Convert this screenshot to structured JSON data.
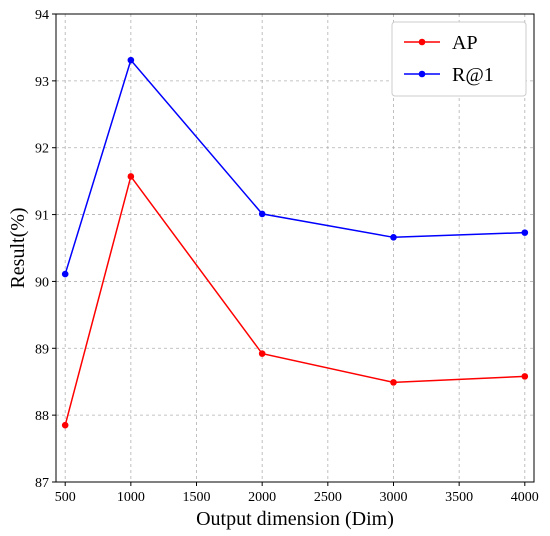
{
  "chart_data": {
    "type": "line",
    "xlabel": "Output dimension (Dim)",
    "ylabel": "Result(%)",
    "xlim": [
      430,
      4070
    ],
    "ylim": [
      87,
      94
    ],
    "xticks": [
      500,
      1000,
      1500,
      2000,
      2500,
      3000,
      3500,
      4000
    ],
    "yticks": [
      87,
      88,
      89,
      90,
      91,
      92,
      93,
      94
    ],
    "grid": true,
    "legend_position": "top-right",
    "x": [
      500,
      1000,
      2000,
      3000,
      4000
    ],
    "series": [
      {
        "name": "AP",
        "color": "#ff0000",
        "values": [
          87.85,
          91.57,
          88.92,
          88.49,
          88.58
        ]
      },
      {
        "name": "R@1",
        "color": "#0000ff",
        "values": [
          90.11,
          93.31,
          91.01,
          90.66,
          90.73
        ]
      }
    ]
  }
}
